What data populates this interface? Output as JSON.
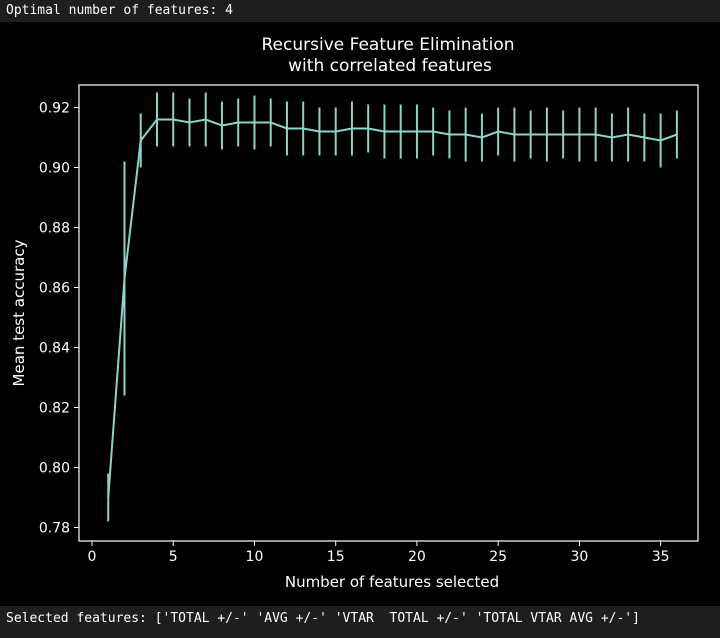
{
  "console": {
    "optimal_line": "Optimal number of features: 4",
    "selected_line": "Selected features: ['TOTAL +/-' 'AVG +/-' 'VTAR  TOTAL +/-' 'TOTAL VTAR AVG +/-']"
  },
  "colors": {
    "background": "#000000",
    "console_background": "#1e1e1e",
    "line": "#8dd3c7",
    "axes": "#ffffff"
  },
  "chart_data": {
    "type": "line",
    "title": "Recursive Feature Elimination",
    "subtitle": "with correlated features",
    "xlabel": "Number of features selected",
    "ylabel": "Mean test accuracy",
    "xlim": [
      -0.8,
      37.3
    ],
    "ylim": [
      0.7755,
      0.9275
    ],
    "grid": false,
    "x_ticks": [
      0,
      5,
      10,
      15,
      20,
      25,
      30,
      35
    ],
    "x_tick_labels": [
      "0",
      "5",
      "10",
      "15",
      "20",
      "25",
      "30",
      "35"
    ],
    "y_ticks": [
      0.78,
      0.8,
      0.82,
      0.84,
      0.86,
      0.88,
      0.9,
      0.92
    ],
    "y_tick_labels": [
      "0.78",
      "0.80",
      "0.82",
      "0.84",
      "0.86",
      "0.88",
      "0.90",
      "0.92"
    ],
    "series": [
      {
        "x": [
          1,
          2,
          3,
          4,
          5,
          6,
          7,
          8,
          9,
          10,
          11,
          12,
          13,
          14,
          15,
          16,
          17,
          18,
          19,
          20,
          21,
          22,
          23,
          24,
          25,
          26,
          27,
          28,
          29,
          30,
          31,
          32,
          33,
          34,
          35,
          36
        ],
        "y": [
          0.79,
          0.863,
          0.909,
          0.916,
          0.916,
          0.915,
          0.916,
          0.914,
          0.915,
          0.915,
          0.915,
          0.913,
          0.913,
          0.912,
          0.912,
          0.913,
          0.913,
          0.912,
          0.912,
          0.912,
          0.912,
          0.911,
          0.911,
          0.91,
          0.912,
          0.911,
          0.911,
          0.911,
          0.911,
          0.911,
          0.911,
          0.91,
          0.911,
          0.91,
          0.909,
          0.911
        ],
        "err": [
          0.008,
          0.039,
          0.009,
          0.009,
          0.009,
          0.008,
          0.009,
          0.008,
          0.008,
          0.009,
          0.008,
          0.009,
          0.009,
          0.008,
          0.008,
          0.009,
          0.008,
          0.009,
          0.009,
          0.009,
          0.008,
          0.008,
          0.009,
          0.008,
          0.008,
          0.009,
          0.008,
          0.009,
          0.008,
          0.009,
          0.009,
          0.008,
          0.009,
          0.008,
          0.009,
          0.008
        ]
      }
    ]
  }
}
